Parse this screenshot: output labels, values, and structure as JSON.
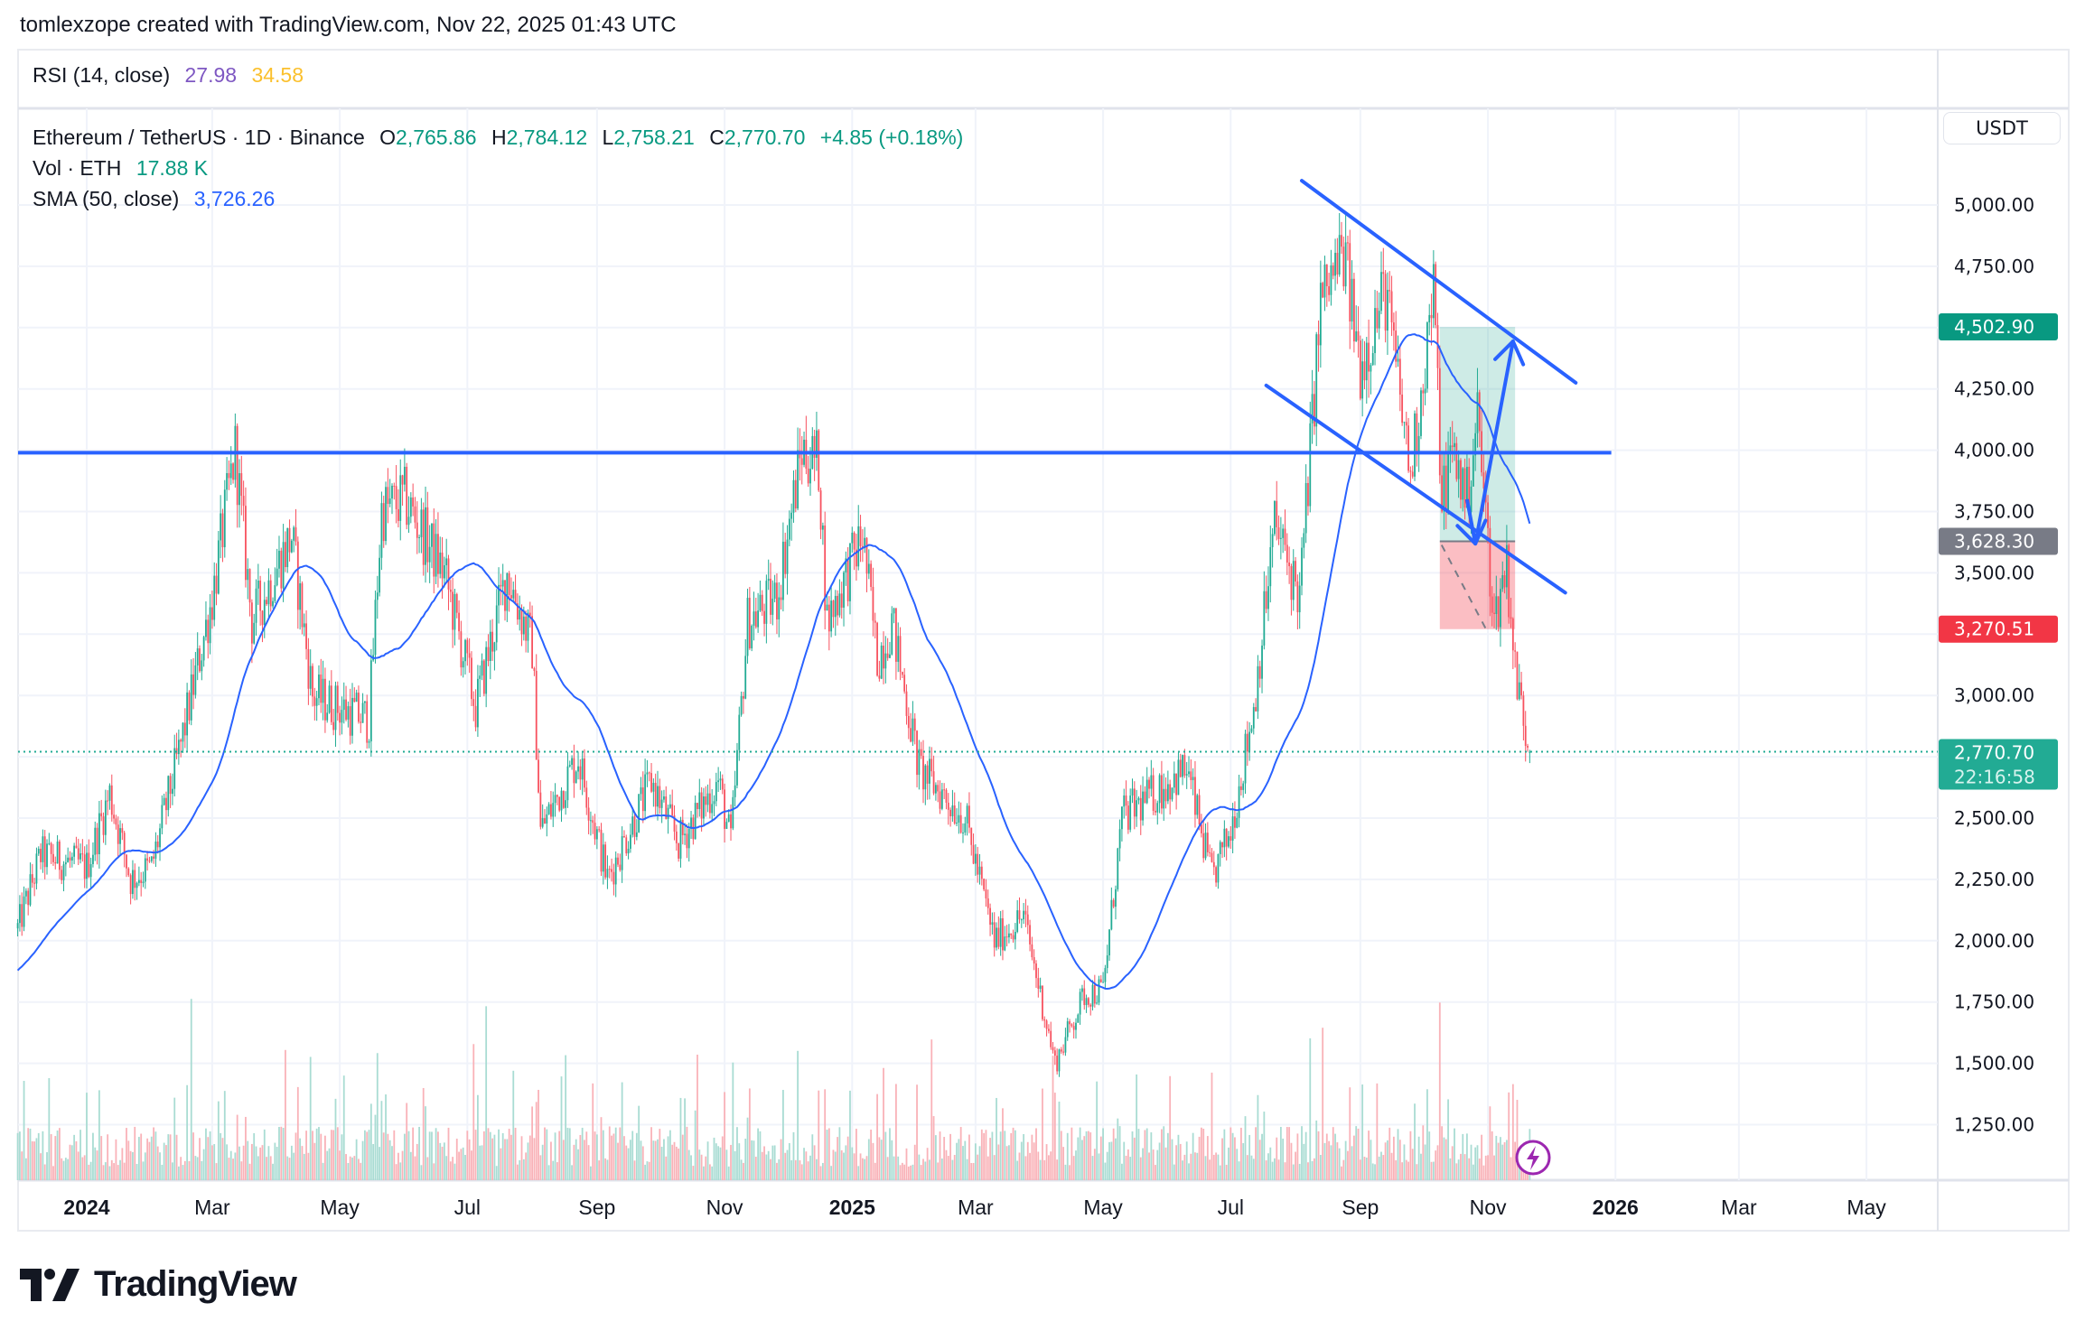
{
  "header": {
    "credit": "tomlexzope created with TradingView.com, Nov 22, 2025 01:43 UTC"
  },
  "rsi": {
    "label": "RSI (14, close)",
    "value1": "27.98",
    "value2": "34.58",
    "color1": "#7e57c2",
    "color2": "#fdd835"
  },
  "legend": {
    "symbol": "Ethereum / TetherUS · 1D · Binance",
    "o_label": "O",
    "o": "2,765.86",
    "h_label": "H",
    "h": "2,784.12",
    "l_label": "L",
    "l": "2,758.21",
    "c_label": "C",
    "c": "2,770.70",
    "change": "+4.85 (+0.18%)",
    "vol_label": "Vol · ETH",
    "vol": "17.88 K",
    "sma_label": "SMA (50, close)",
    "sma": "3,726.26"
  },
  "price_scale": {
    "currency": "USDT",
    "ticks": [
      "5,000.00",
      "4,750.00",
      "4,250.00",
      "4,000.00",
      "3,750.00",
      "3,500.00",
      "3,000.00",
      "2,500.00",
      "2,250.00",
      "2,000.00",
      "1,750.00",
      "1,500.00",
      "1,250.00"
    ],
    "badges": {
      "target": "4,502.90",
      "entry": "3,628.30",
      "stop": "3,270.51",
      "last": "2,770.70",
      "countdown": "22:16:58"
    }
  },
  "time_axis": {
    "labels": [
      "2024",
      "Mar",
      "May",
      "Jul",
      "Sep",
      "Nov",
      "2025",
      "Mar",
      "May",
      "Jul",
      "Sep",
      "Nov",
      "2026",
      "Mar",
      "May"
    ]
  },
  "colors": {
    "up": "#22ab94",
    "down": "#f7525f",
    "sma": "#2962ff",
    "drawing": "#2962ff",
    "target_badge": "#089981",
    "stop_badge": "#f23645",
    "entry_badge": "#787b86"
  },
  "chart_data": {
    "type": "candlestick",
    "symbol": "ETHUSDT",
    "interval": "1D",
    "ylim": [
      1100,
      5250
    ],
    "yticks": [
      1250,
      1500,
      1750,
      2000,
      2250,
      2500,
      2750,
      3000,
      3250,
      3500,
      3750,
      4000,
      4250,
      4500,
      4750,
      5000
    ],
    "xlim": [
      "2023-11-29",
      "2026-06-15"
    ],
    "grid": true,
    "approx_close_path": [
      [
        "2023-11-29",
        2050
      ],
      [
        "2023-12-10",
        2350
      ],
      [
        "2024-01-01",
        2300
      ],
      [
        "2024-01-12",
        2600
      ],
      [
        "2024-01-22",
        2250
      ],
      [
        "2024-02-01",
        2300
      ],
      [
        "2024-02-15",
        2800
      ],
      [
        "2024-03-01",
        3400
      ],
      [
        "2024-03-12",
        4000
      ],
      [
        "2024-03-20",
        3300
      ],
      [
        "2024-04-08",
        3650
      ],
      [
        "2024-04-18",
        3000
      ],
      [
        "2024-05-01",
        2950
      ],
      [
        "2024-05-15",
        2900
      ],
      [
        "2024-05-21",
        3750
      ],
      [
        "2024-06-01",
        3800
      ],
      [
        "2024-06-20",
        3500
      ],
      [
        "2024-07-05",
        2950
      ],
      [
        "2024-07-20",
        3500
      ],
      [
        "2024-08-01",
        3200
      ],
      [
        "2024-08-05",
        2450
      ],
      [
        "2024-08-23",
        2750
      ],
      [
        "2024-09-06",
        2250
      ],
      [
        "2024-09-27",
        2650
      ],
      [
        "2024-10-10",
        2400
      ],
      [
        "2024-10-29",
        2650
      ],
      [
        "2024-11-04",
        2400
      ],
      [
        "2024-11-12",
        3300
      ],
      [
        "2024-11-26",
        3400
      ],
      [
        "2024-12-08",
        4000
      ],
      [
        "2024-12-16",
        3950
      ],
      [
        "2024-12-20",
        3300
      ],
      [
        "2025-01-06",
        3650
      ],
      [
        "2025-01-13",
        3150
      ],
      [
        "2025-01-20",
        3300
      ],
      [
        "2025-02-02",
        2700
      ],
      [
        "2025-02-24",
        2500
      ],
      [
        "2025-03-10",
        2000
      ],
      [
        "2025-03-24",
        2100
      ],
      [
        "2025-04-08",
        1500
      ],
      [
        "2025-04-22",
        1780
      ],
      [
        "2025-05-01",
        1800
      ],
      [
        "2025-05-10",
        2500
      ],
      [
        "2025-06-10",
        2700
      ],
      [
        "2025-06-22",
        2250
      ],
      [
        "2025-07-01",
        2450
      ],
      [
        "2025-07-12",
        2950
      ],
      [
        "2025-07-22",
        3700
      ],
      [
        "2025-08-03",
        3400
      ],
      [
        "2025-08-13",
        4600
      ],
      [
        "2025-08-24",
        4800
      ],
      [
        "2025-09-01",
        4350
      ],
      [
        "2025-09-13",
        4650
      ],
      [
        "2025-09-25",
        3900
      ],
      [
        "2025-10-06",
        4650
      ],
      [
        "2025-10-10",
        3800
      ],
      [
        "2025-10-15",
        4000
      ],
      [
        "2025-10-22",
        3800
      ],
      [
        "2025-10-27",
        4150
      ],
      [
        "2025-11-04",
        3300
      ],
      [
        "2025-11-10",
        3550
      ],
      [
        "2025-11-14",
        3100
      ],
      [
        "2025-11-21",
        2770
      ]
    ],
    "last_close": 2770.7,
    "sma_period": 50,
    "drawings": {
      "horizontal_line": {
        "price": 3990,
        "from": "2023-11-29",
        "to": "2025-12-30"
      },
      "channel_upper": [
        [
          "2025-08-04",
          5099
        ],
        [
          "2025-12-13",
          4275
        ]
      ],
      "channel_lower": [
        [
          "2025-07-18",
          4264
        ],
        [
          "2025-12-08",
          3419
        ]
      ],
      "long_position": {
        "from": "2025-10-09",
        "to": "2025-11-14",
        "entry": 3628.3,
        "target": 4502.9,
        "stop": 3270.51
      },
      "projection_path": [
        [
          "2025-10-22",
          3800
        ],
        [
          "2025-10-26",
          3619
        ],
        [
          "2025-11-13",
          4444
        ]
      ]
    }
  }
}
